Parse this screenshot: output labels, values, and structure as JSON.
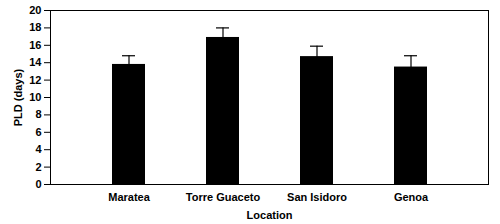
{
  "chart_data": {
    "type": "bar",
    "x_label": "Location",
    "y_label": "PLD (days)",
    "categories": [
      "Maratea",
      "Torre Guaceto",
      "San Isidoro",
      "Genoa"
    ],
    "values": [
      13.8,
      16.9,
      14.7,
      13.5
    ],
    "errors": [
      1.0,
      1.1,
      1.2,
      1.3
    ],
    "color": "#000000",
    "ylim": [
      0,
      20
    ],
    "yticks": [
      0,
      2,
      4,
      6,
      8,
      10,
      12,
      14,
      16,
      18,
      20
    ],
    "grid": false
  }
}
